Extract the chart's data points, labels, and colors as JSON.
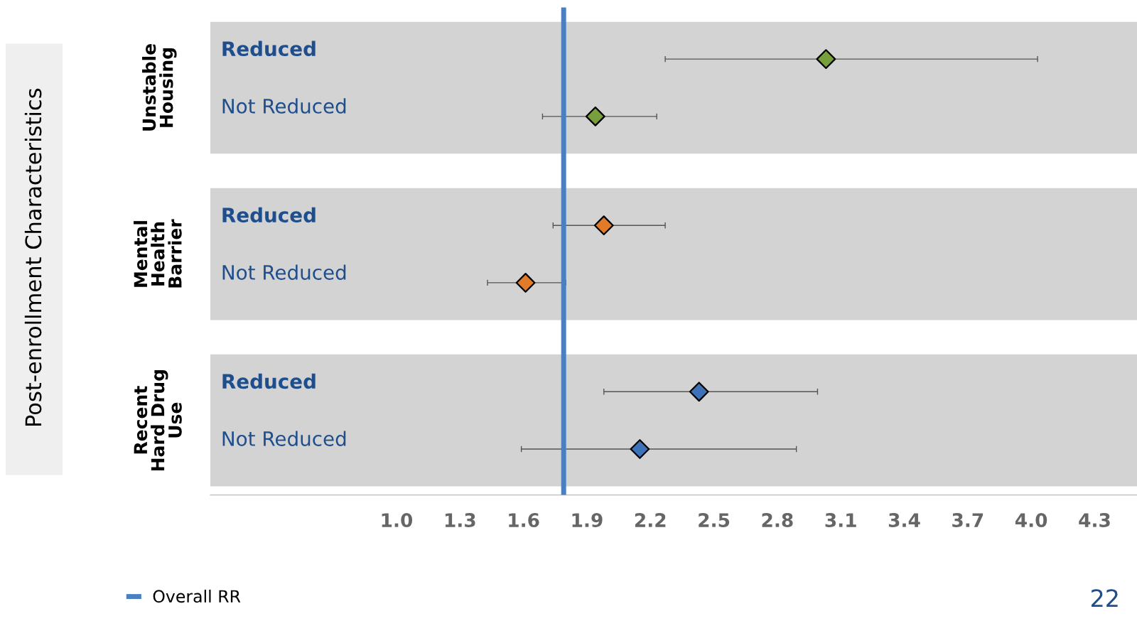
{
  "chart_data": {
    "type": "scatter",
    "categories": [
      "Reduced",
      "Not Reduced",
      "Reduced",
      "Not Reduced",
      "Reduced",
      "Not Reduced"
    ],
    "values": [
      3.03,
      1.94,
      1.98,
      1.61,
      2.43,
      2.15
    ],
    "errors": [
      [
        2.27,
        4.03
      ],
      [
        1.69,
        2.23
      ],
      [
        1.74,
        2.27
      ],
      [
        1.43,
        1.8
      ],
      [
        1.98,
        2.99
      ],
      [
        1.59,
        2.89
      ]
    ],
    "colors": [
      "#77a03c",
      "#77a03c",
      "#e07b2a",
      "#e07b2a",
      "#3d72b8",
      "#3d72b8"
    ],
    "orientation": "horizontal",
    "marker": "diamond",
    "xlim": [
      0.12,
      4.5
    ],
    "xticks": [
      {
        "value": 1.0,
        "label": "1.0"
      },
      {
        "value": 1.3,
        "label": "1.3"
      },
      {
        "value": 1.6,
        "label": "1.6"
      },
      {
        "value": 1.9,
        "label": "1.9"
      },
      {
        "value": 2.2,
        "label": "2.2"
      },
      {
        "value": 2.5,
        "label": "2.5"
      },
      {
        "value": 2.8,
        "label": "2.8"
      },
      {
        "value": 3.1,
        "label": "3.1"
      },
      {
        "value": 3.4,
        "label": "3.4"
      },
      {
        "value": 3.7,
        "label": "3.7"
      },
      {
        "value": 4.0,
        "label": "4.0"
      },
      {
        "value": 4.3,
        "label": "4.3"
      }
    ],
    "ref_lines": [
      {
        "axis": "x",
        "value": 1.79,
        "label": "Overall RR",
        "color": "#4a7fc1"
      }
    ],
    "annotations": [
      "Unstable Housing",
      "Mental Health Barrier",
      "Recent Hard Drug Use",
      "22",
      "Post-enrollment Characteristics"
    ],
    "legend": "bottom left",
    "grid": false
  }
}
